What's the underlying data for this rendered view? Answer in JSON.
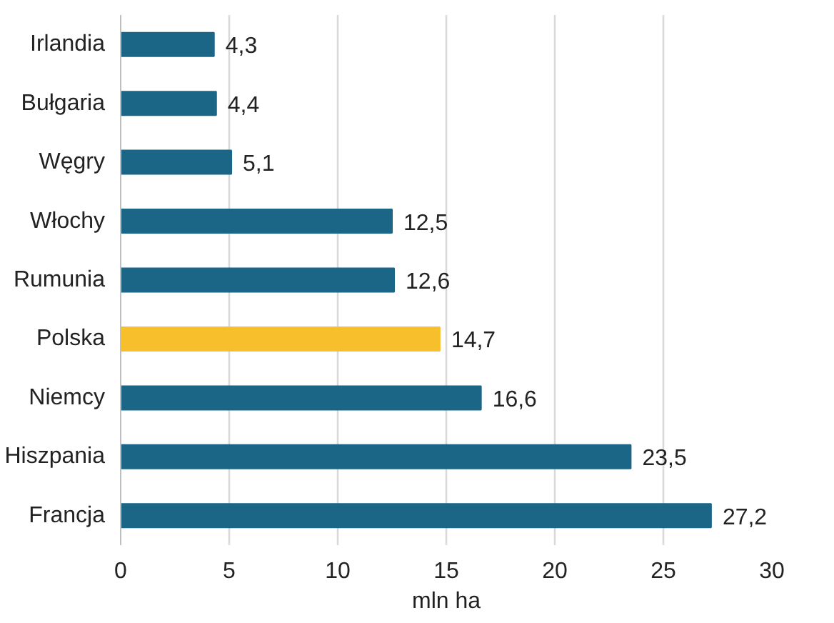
{
  "chart_data": {
    "type": "bar",
    "orientation": "horizontal",
    "xlabel": "mln ha",
    "categories": [
      "Irlandia",
      "Bułgaria",
      "Węgry",
      "Włochy",
      "Rumunia",
      "Polska",
      "Niemcy",
      "Hiszpania",
      "Francja"
    ],
    "values": [
      4.3,
      4.4,
      5.1,
      12.5,
      12.6,
      14.7,
      16.6,
      23.5,
      27.2
    ],
    "value_labels": [
      "4,3",
      "4,4",
      "5,1",
      "12,5",
      "12,6",
      "14,7",
      "16,6",
      "23,5",
      "27,2"
    ],
    "colors": [
      "#1b6586",
      "#1b6586",
      "#1b6586",
      "#1b6586",
      "#1b6586",
      "#f7bf2b",
      "#1b6586",
      "#1b6586",
      "#1b6586"
    ],
    "xlim": [
      0,
      30
    ],
    "xticks": [
      0,
      5,
      10,
      15,
      20,
      25,
      30
    ],
    "grid": "x"
  }
}
